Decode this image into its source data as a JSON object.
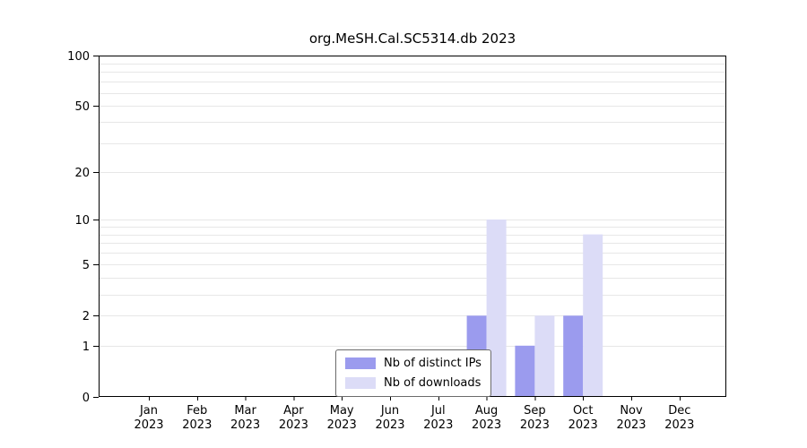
{
  "chart_data": {
    "type": "bar",
    "title": "org.MeSH.Cal.SC5314.db 2023",
    "categories": [
      "Jan",
      "Feb",
      "Mar",
      "Apr",
      "May",
      "Jun",
      "Jul",
      "Aug",
      "Sep",
      "Oct",
      "Nov",
      "Dec"
    ],
    "year": "2023",
    "series": [
      {
        "name": "Nb of distinct IPs",
        "key": "distinct-ips",
        "color": "#9b9bee",
        "values": [
          0,
          0,
          0,
          0,
          0,
          0,
          0,
          2,
          1,
          2,
          0,
          0
        ]
      },
      {
        "name": "Nb of downloads",
        "key": "downloads",
        "color": "#dcdcf7",
        "values": [
          0,
          0,
          0,
          0,
          0,
          0,
          0,
          10,
          2,
          8,
          0,
          0
        ]
      }
    ],
    "y_scale": "log10(v+1)",
    "ylim": [
      0,
      100
    ],
    "yticks": [
      0,
      1,
      2,
      5,
      10,
      20,
      50,
      100
    ],
    "gridline_values": [
      1,
      2,
      3,
      4,
      5,
      6,
      7,
      8,
      9,
      10,
      20,
      30,
      40,
      50,
      60,
      70,
      80,
      90,
      100
    ],
    "grid": true,
    "legend_position": "bottom-center",
    "colors": {
      "axis": "#000000",
      "gridline": "#e7e7e7",
      "background": "#ffffff"
    }
  }
}
